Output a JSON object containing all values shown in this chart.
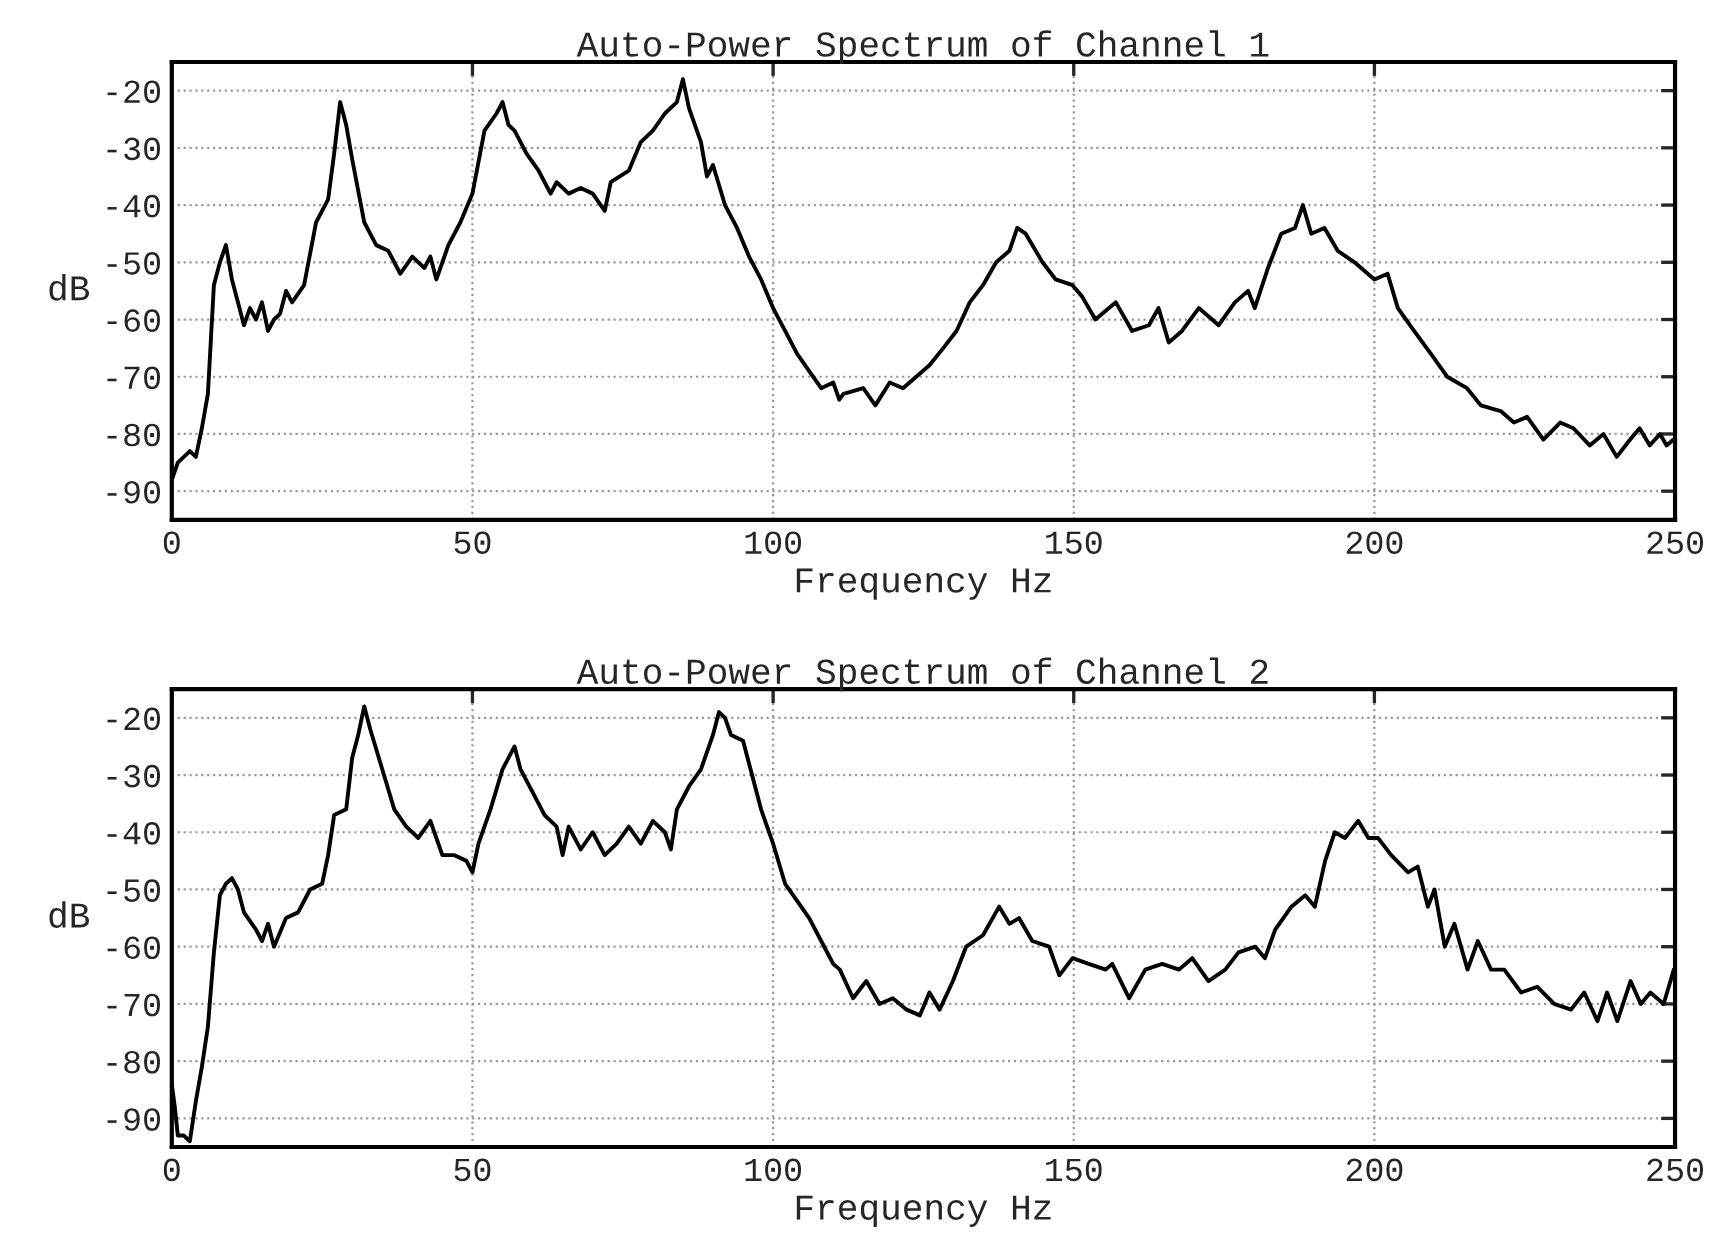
{
  "chart_data": [
    {
      "type": "line",
      "title": "Auto-Power Spectrum of Channel 1",
      "xlabel": "Frequency Hz",
      "ylabel": "dB",
      "xlim": [
        0,
        250
      ],
      "ylim": [
        -95,
        -15
      ],
      "xticks": [
        0,
        50,
        100,
        150,
        200,
        250
      ],
      "yticks": [
        -20,
        -30,
        -40,
        -50,
        -60,
        -70,
        -80,
        -90
      ],
      "grid": true,
      "marker": "none",
      "line_style": "solid",
      "series": [
        {
          "color": "#000000",
          "x": [
            0,
            1,
            2,
            3,
            4,
            5,
            6,
            7,
            8,
            9,
            10,
            11,
            12,
            13,
            14,
            15,
            16,
            17,
            18,
            19,
            20,
            22,
            24,
            26,
            27,
            28,
            29,
            30,
            32,
            34,
            36,
            38,
            40,
            42,
            43,
            44,
            46,
            48,
            50,
            52,
            54,
            55,
            56,
            57,
            59,
            61,
            63,
            64,
            66,
            68,
            70,
            72,
            73,
            76,
            78,
            80,
            82,
            84,
            85,
            86,
            88,
            89,
            90,
            92,
            94,
            96,
            98,
            100,
            102,
            104,
            106,
            108,
            110,
            111,
            111.7,
            115,
            117,
            119.4,
            121.6,
            123.8,
            126,
            128.3,
            130.5,
            132.7,
            134.9,
            137.1,
            139.3,
            140.6,
            142,
            144.8,
            147,
            149.8,
            151.4,
            153.6,
            157,
            159.7,
            162.5,
            164.1,
            165.8,
            168,
            170.8,
            174.1,
            176.8,
            179,
            180.1,
            182.3,
            184.5,
            186.8,
            188.1,
            189.5,
            191.7,
            193.9,
            196.7,
            198.9,
            200,
            202.2,
            203.9,
            206.6,
            209.4,
            212.1,
            215.4,
            217.7,
            221,
            223.2,
            225.4,
            228.1,
            230.9,
            233.1,
            235.8,
            238.1,
            240.3,
            242.5,
            244.1,
            245.8,
            247.5,
            248.6,
            249.7
          ],
          "values": [
            -88,
            -85,
            -84,
            -83,
            -84,
            -79,
            -73,
            -54,
            -50,
            -47,
            -53,
            -57,
            -61,
            -58,
            -60,
            -57,
            -62,
            -60,
            -59,
            -55,
            -57,
            -54,
            -43,
            -39,
            -31,
            -22,
            -26,
            -32,
            -43,
            -47,
            -48,
            -52,
            -49,
            -51,
            -49,
            -53,
            -47,
            -43,
            -38,
            -27,
            -24,
            -22,
            -26,
            -27,
            -31,
            -34,
            -38,
            -36,
            -38,
            -37,
            -38,
            -41,
            -36,
            -34,
            -29,
            -27,
            -24,
            -22,
            -18,
            -23,
            -29,
            -35,
            -33,
            -40,
            -44,
            -49,
            -53,
            -58,
            -62,
            -66,
            -69,
            -72,
            -71,
            -74,
            -73,
            -72,
            -75,
            -71,
            -72,
            -70,
            -68,
            -65,
            -62,
            -57,
            -54,
            -50,
            -48,
            -44,
            -45,
            -50,
            -53,
            -54,
            -56,
            -60,
            -57,
            -62,
            -61,
            -58,
            -64,
            -62,
            -58,
            -61,
            -57,
            -55,
            -58,
            -51,
            -45,
            -44,
            -40,
            -45,
            -44,
            -48,
            -50,
            -52,
            -53,
            -52,
            -58,
            -62,
            -66,
            -70,
            -72,
            -75,
            -76,
            -78,
            -77,
            -81,
            -78,
            -79,
            -82,
            -80,
            -84,
            -81,
            -79,
            -82,
            -80,
            -82,
            -81
          ]
        }
      ]
    },
    {
      "type": "line",
      "title": "Auto-Power Spectrum of Channel 2",
      "xlabel": "Frequency Hz",
      "ylabel": "dB",
      "xlim": [
        0,
        250
      ],
      "ylim": [
        -95,
        -15
      ],
      "xticks": [
        0,
        50,
        100,
        150,
        200,
        250
      ],
      "yticks": [
        -20,
        -30,
        -40,
        -50,
        -60,
        -70,
        -80,
        -90
      ],
      "grid": true,
      "marker": "none",
      "line_style": "solid",
      "series": [
        {
          "color": "#000000",
          "x": [
            0,
            0.5,
            1,
            2,
            3,
            4,
            5,
            6,
            7,
            8,
            9,
            10,
            11,
            12,
            14,
            15,
            16,
            17,
            19,
            21,
            23,
            25,
            26,
            27,
            29,
            30,
            31,
            32,
            33,
            35,
            37,
            39,
            41,
            43,
            45,
            47,
            49,
            50,
            51,
            53,
            55,
            57,
            58,
            60,
            62,
            64,
            65,
            66,
            68,
            70,
            72,
            74,
            76,
            78,
            80,
            82,
            83,
            84,
            86,
            88,
            90,
            91,
            92,
            93,
            95,
            96,
            98,
            100,
            102,
            104,
            106,
            108,
            110,
            111.1,
            113.3,
            115.5,
            117.7,
            119.9,
            122.2,
            124.4,
            126,
            127.7,
            129.9,
            132.1,
            134.9,
            137.6,
            139.3,
            140.9,
            143.1,
            145.9,
            147.6,
            149.8,
            152.5,
            155.3,
            156.4,
            159.2,
            161.9,
            164.7,
            167.5,
            169.7,
            172.4,
            175.2,
            177.4,
            180.2,
            181.8,
            183.5,
            186.2,
            188.5,
            190.1,
            191.8,
            193.4,
            195.1,
            197.3,
            199,
            200.6,
            202.8,
            205.6,
            207.2,
            208.9,
            210,
            211.7,
            213.3,
            215.5,
            217.2,
            219.4,
            221.6,
            224.4,
            227.1,
            229.9,
            232.7,
            234.9,
            237.1,
            238.7,
            240.4,
            242.6,
            244.3,
            245.9,
            248.1,
            249.8
          ],
          "values": [
            -84,
            -88,
            -93,
            -93,
            -94,
            -87,
            -81,
            -74,
            -61,
            -51,
            -49,
            -48,
            -50,
            -54,
            -57,
            -59,
            -56,
            -60,
            -55,
            -54,
            -50,
            -49,
            -44,
            -37,
            -36,
            -27,
            -23,
            -18,
            -22,
            -29,
            -36,
            -39,
            -41,
            -38,
            -44,
            -44,
            -45,
            -47,
            -42,
            -36,
            -29,
            -25,
            -29,
            -33,
            -37,
            -39,
            -44,
            -39,
            -43,
            -40,
            -44,
            -42,
            -39,
            -42,
            -38,
            -40,
            -43,
            -36,
            -32,
            -29,
            -23,
            -19,
            -20,
            -23,
            -24,
            -28,
            -36,
            -42,
            -49,
            -52,
            -55,
            -59,
            -63,
            -64,
            -69,
            -66,
            -70,
            -69,
            -71,
            -72,
            -68,
            -71,
            -66,
            -60,
            -58,
            -53,
            -56,
            -55,
            -59,
            -60,
            -65,
            -62,
            -63,
            -64,
            -63,
            -69,
            -64,
            -63,
            -64,
            -62,
            -66,
            -64,
            -61,
            -60,
            -62,
            -57,
            -53,
            -51,
            -53,
            -45,
            -40,
            -41,
            -38,
            -41,
            -41,
            -44,
            -47,
            -46,
            -53,
            -50,
            -60,
            -56,
            -64,
            -59,
            -64,
            -64,
            -68,
            -67,
            -70,
            -71,
            -68,
            -73,
            -68,
            -73,
            -66,
            -70,
            -68,
            -70,
            -64
          ]
        }
      ]
    }
  ]
}
